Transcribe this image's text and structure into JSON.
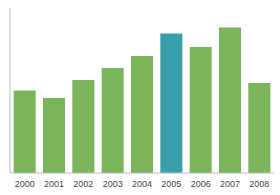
{
  "chart_data": {
    "type": "bar",
    "categories": [
      "2000",
      "2001",
      "2002",
      "2003",
      "2004",
      "2005",
      "2006",
      "2007",
      "2008"
    ],
    "values": [
      55,
      50,
      62,
      70,
      78,
      93,
      84,
      97,
      60
    ],
    "colors": [
      "#7ab55c",
      "#7ab55c",
      "#7ab55c",
      "#7ab55c",
      "#7ab55c",
      "#3a9eab",
      "#7ab55c",
      "#7ab55c",
      "#7ab55c"
    ],
    "ylim": [
      0,
      110
    ],
    "grid": false,
    "tick_labels": "x"
  }
}
